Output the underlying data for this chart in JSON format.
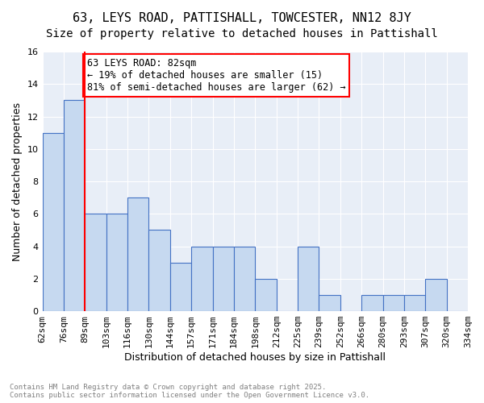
{
  "title": "63, LEYS ROAD, PATTISHALL, TOWCESTER, NN12 8JY",
  "subtitle": "Size of property relative to detached houses in Pattishall",
  "xlabel": "Distribution of detached houses by size in Pattishall",
  "ylabel": "Number of detached properties",
  "bin_labels": [
    "62sqm",
    "76sqm",
    "89sqm",
    "103sqm",
    "116sqm",
    "130sqm",
    "144sqm",
    "157sqm",
    "171sqm",
    "184sqm",
    "198sqm",
    "212sqm",
    "225sqm",
    "239sqm",
    "252sqm",
    "266sqm",
    "280sqm",
    "293sqm",
    "307sqm",
    "320sqm",
    "334sqm"
  ],
  "bar_heights": [
    11,
    13,
    6,
    6,
    7,
    5,
    3,
    4,
    4,
    4,
    2,
    0,
    4,
    1,
    0,
    1,
    1,
    1,
    2,
    0
  ],
  "bar_color": "#c6d9f0",
  "bar_edge_color": "#4472c4",
  "red_line_x": 2,
  "annotation_text": "63 LEYS ROAD: 82sqm\n← 19% of detached houses are smaller (15)\n81% of semi-detached houses are larger (62) →",
  "annotation_box_color": "white",
  "annotation_box_edge": "red",
  "ylim": [
    0,
    16
  ],
  "yticks": [
    0,
    2,
    4,
    6,
    8,
    10,
    12,
    14,
    16
  ],
  "background_color": "#e8eef7",
  "footer_text": "Contains HM Land Registry data © Crown copyright and database right 2025.\nContains public sector information licensed under the Open Government Licence v3.0.",
  "title_fontsize": 11,
  "subtitle_fontsize": 10,
  "axis_label_fontsize": 9,
  "tick_fontsize": 8,
  "annotation_fontsize": 8.5
}
